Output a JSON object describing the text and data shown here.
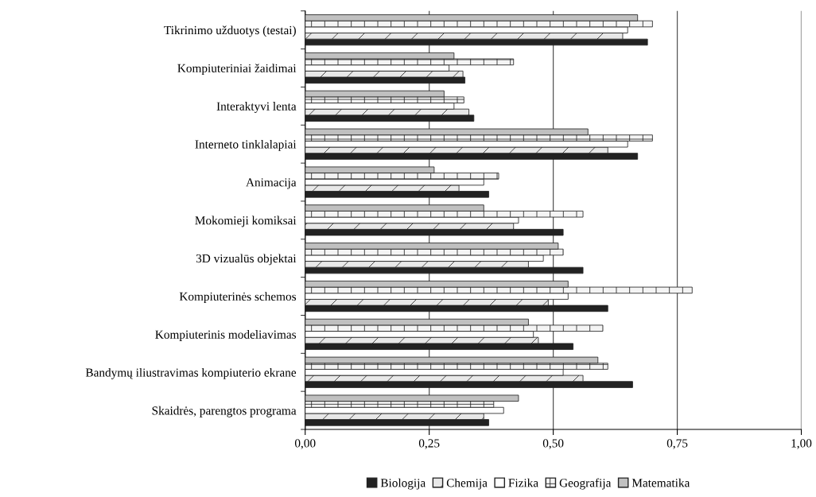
{
  "chart_data": {
    "type": "bar",
    "orientation": "horizontal",
    "categories": [
      "Tikrinimo užduotys (testai)",
      "Kompiuteriniai žaidimai",
      "Interaktyvi lenta",
      "Interneto tinklalapiai",
      "Animacija",
      "Mokomieji komiksai",
      "3D vizualūs objektai",
      "Kompiuterinės schemos",
      "Kompiuterinis modeliavimas",
      "Bandymų iliustravimas kompiuterio ekrane",
      "Skaidrės, parengtos programa"
    ],
    "series": [
      {
        "name": "Biologija",
        "color": "#222222",
        "values": [
          0.69,
          0.322,
          0.34,
          0.67,
          0.37,
          0.52,
          0.56,
          0.61,
          0.54,
          0.66,
          0.37
        ]
      },
      {
        "name": "Chemija",
        "color": "#e8e8e8",
        "values": [
          0.64,
          0.318,
          0.33,
          0.61,
          0.31,
          0.42,
          0.45,
          0.49,
          0.47,
          0.56,
          0.36
        ]
      },
      {
        "name": "Fizika",
        "color": "#ffffff",
        "values": [
          0.65,
          0.29,
          0.3,
          0.65,
          0.36,
          0.43,
          0.48,
          0.53,
          0.46,
          0.52,
          0.4
        ]
      },
      {
        "name": "Geografija",
        "color": "#f4f4f4",
        "values": [
          0.7,
          0.42,
          0.32,
          0.7,
          0.39,
          0.56,
          0.52,
          0.78,
          0.6,
          0.61,
          0.38
        ]
      },
      {
        "name": "Matematika",
        "color": "#c0c0c0",
        "values": [
          0.67,
          0.3,
          0.28,
          0.57,
          0.26,
          0.36,
          0.51,
          0.53,
          0.45,
          0.59,
          0.43
        ]
      }
    ],
    "xlim": [
      0,
      1
    ],
    "xticks": [
      {
        "value": 0,
        "label": "0,00"
      },
      {
        "value": 0.25,
        "label": "0,25"
      },
      {
        "value": 0.5,
        "label": "0,50"
      },
      {
        "value": 0.75,
        "label": "0,75"
      },
      {
        "value": 1,
        "label": "1,00"
      }
    ],
    "grid": "x",
    "legend": "bottom"
  }
}
